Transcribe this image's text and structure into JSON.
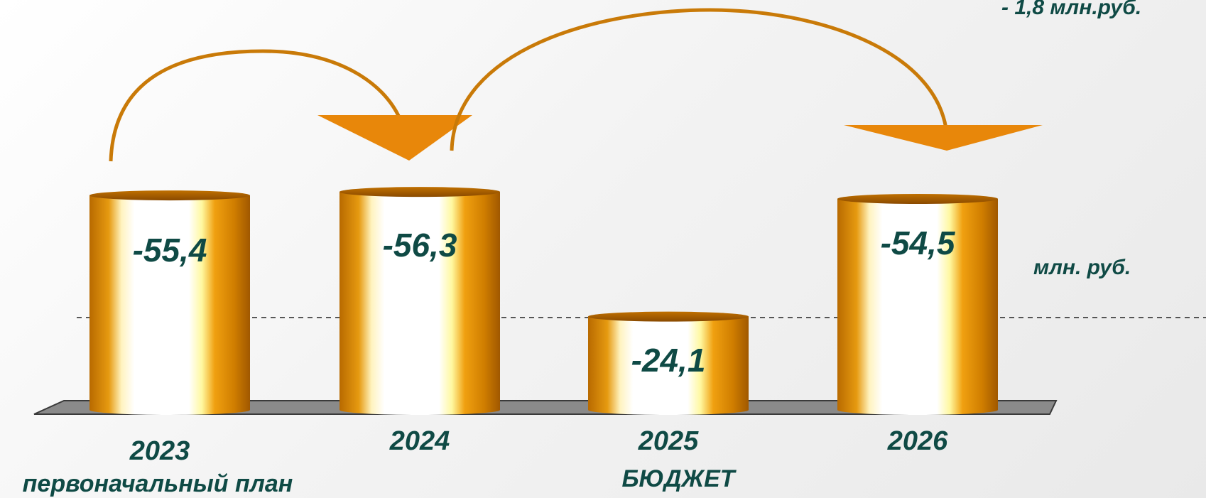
{
  "chart_data": {
    "type": "bar",
    "categories": [
      "2023",
      "2024",
      "2025",
      "2026"
    ],
    "values": [
      -55.4,
      -56.3,
      -24.1,
      -54.5
    ],
    "value_labels": [
      "-55,4",
      "-56,3",
      "-24,1",
      "-54,5"
    ],
    "category_captions": [
      "первоначальный план",
      "",
      "БЮДЖЕТ",
      ""
    ],
    "units_label": "млн. руб.",
    "corner_note": "- 1,8  млн.руб.",
    "colors": {
      "bar": "#e08a00",
      "arrow": "#e8870a",
      "label": "#0f4a45"
    }
  }
}
